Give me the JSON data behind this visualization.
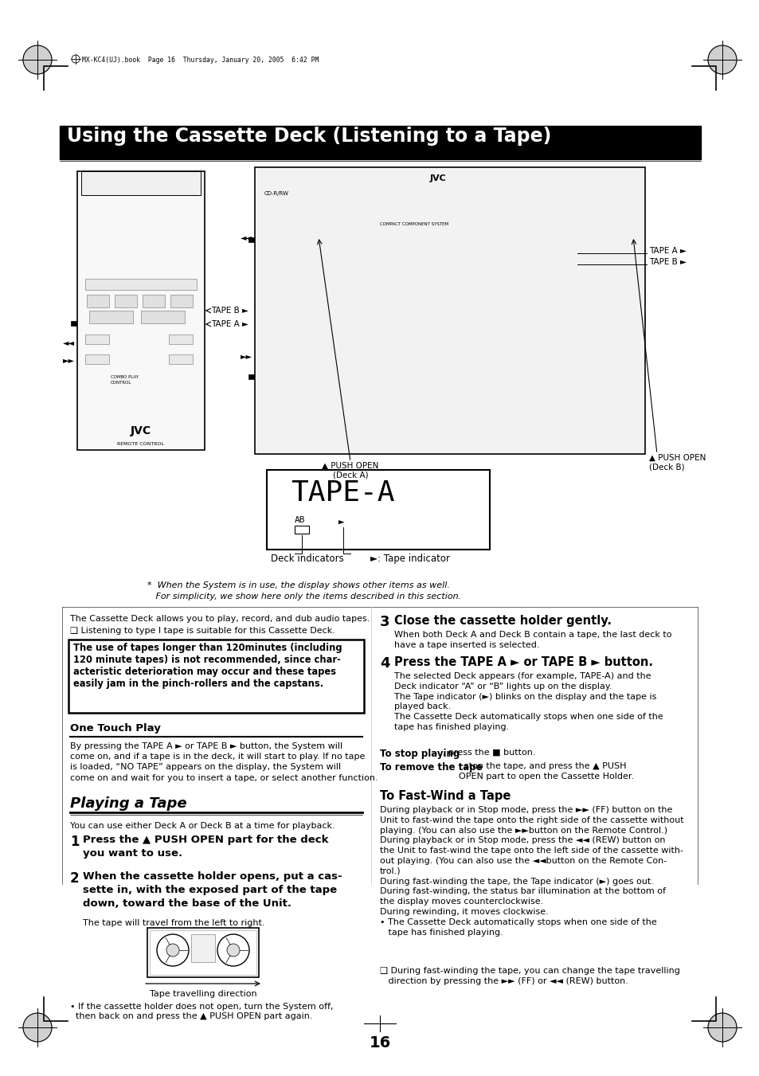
{
  "page_bg": "#ffffff",
  "title_text": "Using the Cassette Deck (Listening to a Tape)",
  "title_bg": "#000000",
  "title_color": "#ffffff",
  "header_note": "MX-KC4(UJ).book  Page 16  Thursday, January 20, 2005  6:42 PM",
  "page_number": "16",
  "warning_box_text": "The use of tapes longer than 120minutes (including\n120 minute tapes) is not recommended, since char-\nacteristic deterioration may occur and these tapes\neasily jam in the pinch-rollers and the capstans.",
  "intro_text1": "The Cassette Deck allows you to play, record, and dub audio tapes.",
  "intro_text2": "❑ Listening to type I tape is suitable for this Cassette Deck.",
  "section_one_touch": "One Touch Play",
  "one_touch_text": "By pressing the TAPE A ► or TAPE B ► button, the System will\ncome on, and if a tape is in the deck, it will start to play. If no tape\nis loaded, “NO TAPE” appears on the display, the System will\ncome on and wait for you to insert a tape, or select another function.",
  "section_playing": "Playing a Tape",
  "playing_intro": "You can use either Deck A or Deck B at a time for playback.",
  "step1_num": "1",
  "step1_text": "Press the ▲ PUSH OPEN part for the deck\nyou want to use.",
  "step2_num": "2",
  "step2_text": "When the cassette holder opens, put a cas-\nsette in, with the exposed part of the tape\ndown, toward the base of the Unit.",
  "step2_note": "The tape will travel from the left to right.",
  "tape_caption": "Tape travelling direction",
  "bullet_note": "• If the cassette holder does not open, turn the System off,\n  then back on and press the ▲ PUSH OPEN part again.",
  "step3_num": "3",
  "step3_header": "Close the cassette holder gently.",
  "step3_text": "When both Deck A and Deck B contain a tape, the last deck to\nhave a tape inserted is selected.",
  "step4_num": "4",
  "step4_header": "Press the TAPE A ► or TAPE B ► button.",
  "step4_text": "The selected Deck appears (for example, TAPE-A) and the\nDeck indicator “A” or “B” lights up on the display.\nThe Tape indicator (►) blinks on the display and the tape is\nplayed back.\nThe Cassette Deck automatically stops when one side of the\ntape has finished playing.",
  "stop_playing_bold": "To stop playing",
  "stop_playing_text": ", press the ■ button.",
  "remove_tape_bold": "To remove the tape",
  "remove_tape_text": ", stop the tape, and press the ▲ PUSH\nOPEN part to open the Cassette Holder.",
  "section_fastwind": "To Fast-Wind a Tape",
  "fastwind_text": "During playback or in Stop mode, press the ►► (FF) button on the\nUnit to fast-wind the tape onto the right side of the cassette without\nplaying. (You can also use the ►►button on the Remote Control.)\nDuring playback or in Stop mode, press the ◄◄ (REW) button on\nthe Unit to fast-wind the tape onto the left side of the cassette with-\nout playing. (You can also use the ◄◄button on the Remote Con-\ntrol.)\nDuring fast-winding the tape, the Tape indicator (►) goes out.\nDuring fast-winding, the status bar illumination at the bottom of\nthe display moves counterclockwise.\nDuring rewinding, it moves clockwise.\n• The Cassette Deck automatically stops when one side of the\n   tape has finished playing.",
  "fastwind_bullet2": "❑ During fast-winding the tape, you can change the tape travelling\n   direction by pressing the ►► (FF) or ◄◄ (REW) button.",
  "footnote1": "*  When the System is in use, the display shows other items as well.",
  "footnote2": "   For simplicity, we show here only the items described in this section.",
  "label_tape_a_top": "TAPE A ►",
  "label_tape_b_top": "TAPE B ►",
  "label_push_open_deck_a": "▲ PUSH OPEN\n(Deck A)",
  "label_push_open_deck_b": "▲ PUSH OPEN\n(Deck B)",
  "label_tape_b_left": "TAPE B ►",
  "label_tape_a_left": "TAPE A ►",
  "deck_indicators_label": "Deck indicators",
  "tape_indicator_label": "►: Tape indicator"
}
